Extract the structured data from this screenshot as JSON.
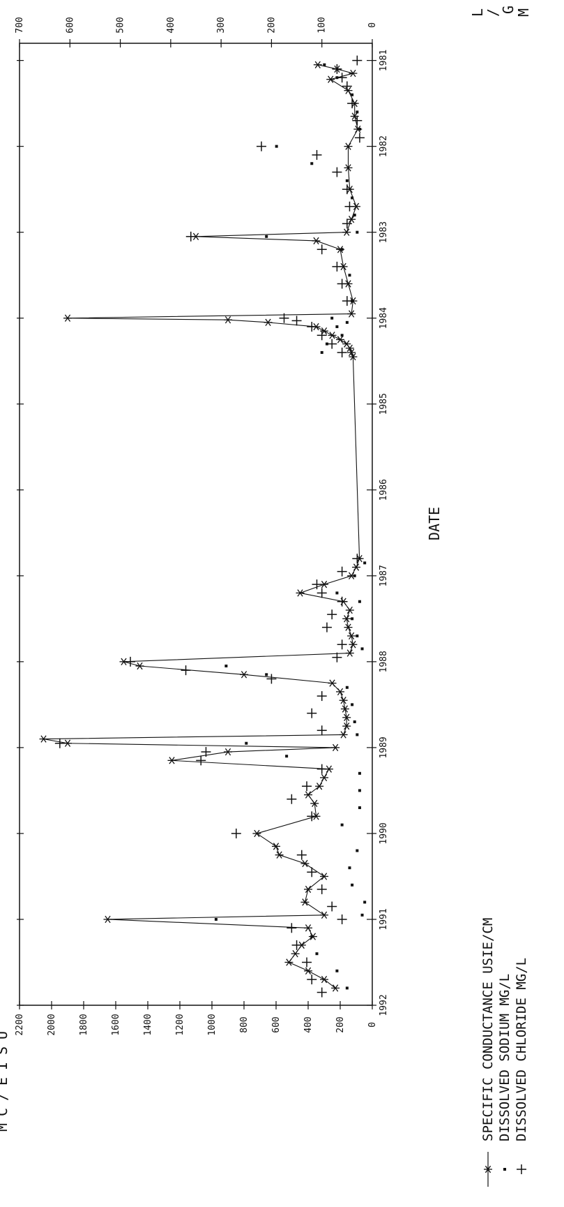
{
  "chart_data": {
    "type": "scatter",
    "orientation": "rotated 90 degrees clockwise (x axis runs top-to-bottom)",
    "xlabel": "DATE",
    "ylabel_left": "U S I E / C M",
    "ylabel_right": "M G / L",
    "x_ticks": [
      "1981",
      "1982",
      "1983",
      "1984",
      "1985",
      "1986",
      "1987",
      "1988",
      "1989",
      "1990",
      "1991",
      "1992"
    ],
    "xlim": [
      1980.8,
      1992.0
    ],
    "y_left_ticks": [
      "0",
      "200",
      "400",
      "600",
      "800",
      "1000",
      "1200",
      "1400",
      "1600",
      "1800",
      "2000",
      "2200"
    ],
    "y_left_lim": [
      0,
      2200
    ],
    "y_right_ticks": [
      "0",
      "100",
      "200",
      "300",
      "400",
      "500",
      "600",
      "700"
    ],
    "y_right_lim": [
      0,
      700
    ],
    "grid": false,
    "legend_position": "bottom",
    "series": [
      {
        "name": "SPECIFIC CONDUCTANCE USIE/CM",
        "marker": "*",
        "line": true,
        "axis": "left",
        "x": [
          1981.05,
          1981.1,
          1981.15,
          1981.22,
          1981.35,
          1981.5,
          1981.65,
          1981.8,
          1982.0,
          1982.25,
          1982.5,
          1982.7,
          1982.85,
          1983.0,
          1983.05,
          1983.1,
          1983.2,
          1983.4,
          1983.6,
          1983.8,
          1983.95,
          1984.0,
          1984.02,
          1984.05,
          1984.1,
          1984.15,
          1984.2,
          1984.25,
          1984.3,
          1984.35,
          1984.4,
          1984.45,
          1986.8,
          1986.9,
          1987.0,
          1987.1,
          1987.2,
          1987.3,
          1987.4,
          1987.5,
          1987.6,
          1987.7,
          1987.8,
          1987.9,
          1988.0,
          1988.05,
          1988.15,
          1988.25,
          1988.35,
          1988.45,
          1988.55,
          1988.65,
          1988.75,
          1988.85,
          1988.9,
          1988.95,
          1989.0,
          1989.05,
          1989.15,
          1989.25,
          1989.35,
          1989.45,
          1989.55,
          1989.65,
          1989.8,
          1990.0,
          1990.15,
          1990.25,
          1990.35,
          1990.5,
          1990.65,
          1990.8,
          1990.95,
          1991.0,
          1991.1,
          1991.2,
          1991.3,
          1991.4,
          1991.5,
          1991.6,
          1991.7,
          1991.8
        ],
        "y": [
          340,
          220,
          120,
          260,
          150,
          110,
          110,
          90,
          150,
          150,
          140,
          100,
          130,
          160,
          1100,
          350,
          200,
          180,
          150,
          120,
          130,
          1900,
          900,
          650,
          350,
          300,
          250,
          200,
          160,
          140,
          130,
          120,
          80,
          100,
          130,
          300,
          450,
          180,
          140,
          160,
          150,
          130,
          120,
          140,
          1550,
          1450,
          800,
          250,
          200,
          180,
          170,
          160,
          160,
          180,
          2050,
          1900,
          230,
          900,
          1250,
          270,
          300,
          330,
          400,
          360,
          350,
          720,
          600,
          580,
          420,
          300,
          400,
          420,
          300,
          1650,
          400,
          370,
          440,
          480,
          520,
          400,
          300,
          230
        ]
      },
      {
        "name": "DISSOLVED SODIUM MG/L",
        "marker": "dot",
        "line": false,
        "axis": "right",
        "x": [
          1981.05,
          1981.2,
          1981.4,
          1981.6,
          1981.8,
          1982.0,
          1982.2,
          1982.4,
          1982.6,
          1982.8,
          1983.0,
          1983.05,
          1983.2,
          1983.5,
          1983.8,
          1984.0,
          1984.05,
          1984.1,
          1984.2,
          1984.3,
          1984.4,
          1986.85,
          1987.0,
          1987.2,
          1987.3,
          1987.5,
          1987.7,
          1987.85,
          1988.05,
          1988.15,
          1988.3,
          1988.5,
          1988.7,
          1988.85,
          1988.95,
          1989.1,
          1989.3,
          1989.5,
          1989.7,
          1989.9,
          1990.2,
          1990.4,
          1990.6,
          1990.8,
          1990.95,
          1991.0,
          1991.2,
          1991.4,
          1991.6,
          1991.8
        ],
        "y": [
          95,
          70,
          40,
          30,
          25,
          190,
          120,
          50,
          40,
          35,
          30,
          210,
          60,
          45,
          40,
          80,
          50,
          70,
          60,
          90,
          100,
          15,
          35,
          70,
          25,
          40,
          30,
          20,
          290,
          210,
          50,
          40,
          35,
          30,
          250,
          170,
          25,
          25,
          25,
          60,
          30,
          45,
          40,
          15,
          20,
          310,
          120,
          110,
          70,
          50
        ]
      },
      {
        "name": "DISSOLVED CHLORIDE MG/L",
        "marker": "+",
        "line": false,
        "axis": "right",
        "x": [
          1981.0,
          1981.1,
          1981.2,
          1981.3,
          1981.5,
          1981.7,
          1981.9,
          1982.0,
          1982.1,
          1982.3,
          1982.5,
          1982.7,
          1982.9,
          1983.05,
          1983.2,
          1983.4,
          1983.6,
          1983.8,
          1984.0,
          1984.03,
          1984.1,
          1984.2,
          1984.3,
          1984.4,
          1986.8,
          1986.95,
          1987.1,
          1987.2,
          1987.3,
          1987.45,
          1987.6,
          1987.8,
          1987.95,
          1988.0,
          1988.1,
          1988.2,
          1988.4,
          1988.6,
          1988.8,
          1988.95,
          1989.05,
          1989.15,
          1989.25,
          1989.45,
          1989.6,
          1989.8,
          1990.0,
          1990.25,
          1990.45,
          1990.65,
          1990.85,
          1991.0,
          1991.1,
          1991.3,
          1991.5,
          1991.7,
          1991.85
        ],
        "y": [
          30,
          70,
          60,
          50,
          40,
          30,
          25,
          220,
          110,
          70,
          50,
          45,
          50,
          360,
          100,
          70,
          60,
          50,
          175,
          150,
          120,
          100,
          80,
          60,
          30,
          60,
          110,
          100,
          60,
          80,
          90,
          60,
          70,
          480,
          370,
          200,
          100,
          120,
          100,
          620,
          330,
          340,
          100,
          130,
          160,
          120,
          270,
          140,
          120,
          100,
          80,
          60,
          160,
          150,
          130,
          120,
          100
        ]
      }
    ]
  }
}
